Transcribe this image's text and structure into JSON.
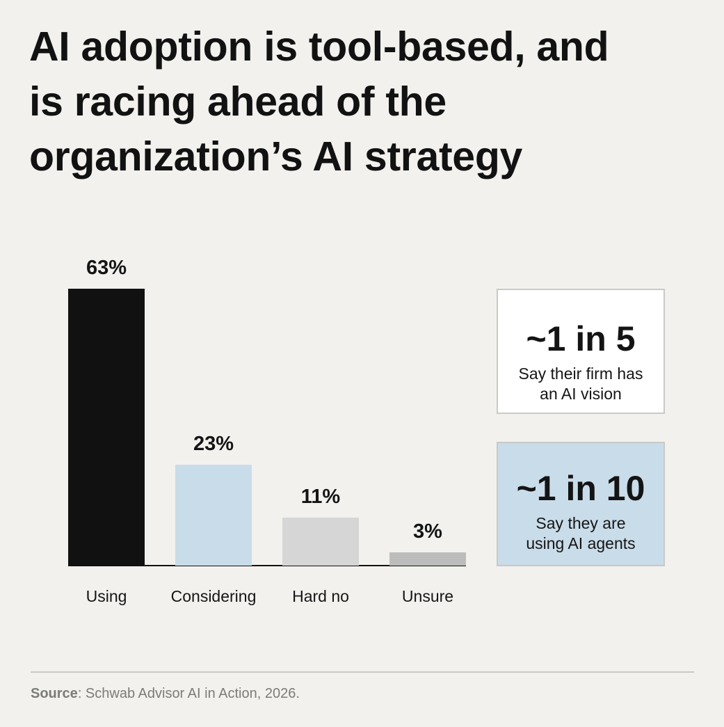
{
  "title": {
    "lines": [
      "AI adoption is tool-based, and",
      "is racing ahead of the",
      "organization’s AI strategy"
    ]
  },
  "chart_data": {
    "type": "bar",
    "title": "AI adoption is tool-based, and is racing ahead of the organization’s AI strategy",
    "categories": [
      "Using",
      "Considering",
      "Hard no",
      "Unsure"
    ],
    "values": [
      63,
      23,
      11,
      3
    ],
    "value_labels": [
      "63%",
      "23%",
      "11%",
      "3%"
    ],
    "colors": [
      "#111111",
      "#c9dce9",
      "#d6d6d6",
      "#bcbcbc"
    ],
    "xlabel": "",
    "ylabel": "",
    "ylim": [
      0,
      63
    ],
    "grid": false,
    "legend": "none",
    "unit": "%"
  },
  "callouts": [
    {
      "value": "~1 in 5",
      "description_line1": "Say their firm has",
      "description_line2": "an AI vision",
      "background": "#ffffff"
    },
    {
      "value": "~1 in 10",
      "description_line1": "Say they are",
      "description_line2": "using AI agents",
      "background": "#c9dce9"
    }
  ],
  "footer": {
    "source_label": "Source",
    "source_text": ": Schwab Advisor AI in Action, 2026."
  }
}
